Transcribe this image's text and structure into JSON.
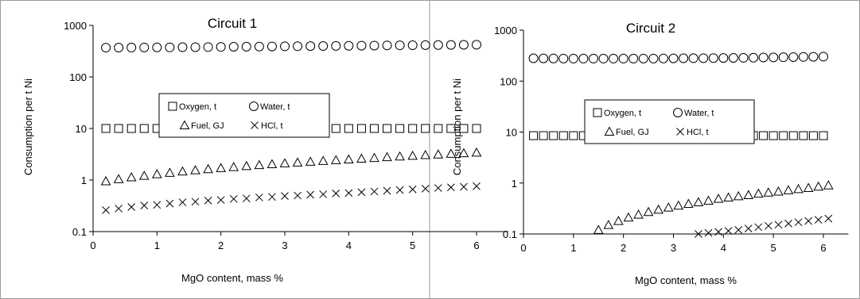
{
  "chart_data": [
    {
      "type": "scatter",
      "title": "Circuit 1",
      "xlabel": "MgO content, mass %",
      "ylabel": "Consumption per t Ni",
      "xlim": [
        0,
        6.5
      ],
      "ylim": [
        0.1,
        1000
      ],
      "yscale": "log",
      "x_ticks": [
        "0",
        "1",
        "2",
        "3",
        "4",
        "5",
        "6"
      ],
      "y_ticks": [
        "0.1",
        "1",
        "10",
        "100",
        "1000"
      ],
      "grid": false,
      "legend_position": "center",
      "series": [
        {
          "name": "Oxygen, t",
          "marker": "square",
          "x": [
            0.2,
            0.4,
            0.6,
            0.8,
            1.0,
            1.2,
            1.4,
            1.6,
            1.8,
            2.0,
            2.2,
            2.4,
            2.6,
            2.8,
            3.0,
            3.2,
            3.4,
            3.6,
            3.8,
            4.0,
            4.2,
            4.4,
            4.6,
            4.8,
            5.0,
            5.2,
            5.4,
            5.6,
            5.8,
            6.0
          ],
          "y": [
            10,
            10,
            10,
            10,
            10,
            10,
            10,
            10,
            10,
            10,
            10,
            10,
            10,
            10,
            10,
            10,
            10,
            10,
            10,
            10,
            10,
            10,
            10,
            10,
            10,
            10,
            10,
            10,
            10,
            10
          ]
        },
        {
          "name": "Water, t",
          "marker": "circle",
          "x": [
            0.2,
            0.4,
            0.6,
            0.8,
            1.0,
            1.2,
            1.4,
            1.6,
            1.8,
            2.0,
            2.2,
            2.4,
            2.6,
            2.8,
            3.0,
            3.2,
            3.4,
            3.6,
            3.8,
            4.0,
            4.2,
            4.4,
            4.6,
            4.8,
            5.0,
            5.2,
            5.4,
            5.6,
            5.8,
            6.0
          ],
          "y": [
            370,
            371,
            372,
            373,
            374,
            375,
            377,
            378,
            380,
            382,
            384,
            386,
            388,
            390,
            392,
            394,
            396,
            398,
            400,
            402,
            404,
            406,
            408,
            410,
            412,
            414,
            416,
            418,
            420,
            422
          ]
        },
        {
          "name": "Fuel, GJ",
          "marker": "triangle",
          "x": [
            0.2,
            0.4,
            0.6,
            0.8,
            1.0,
            1.2,
            1.4,
            1.6,
            1.8,
            2.0,
            2.2,
            2.4,
            2.6,
            2.8,
            3.0,
            3.2,
            3.4,
            3.6,
            3.8,
            4.0,
            4.2,
            4.4,
            4.6,
            4.8,
            5.0,
            5.2,
            5.4,
            5.6,
            5.8,
            6.0
          ],
          "y": [
            0.95,
            1.04,
            1.13,
            1.21,
            1.3,
            1.38,
            1.47,
            1.55,
            1.63,
            1.71,
            1.79,
            1.87,
            1.95,
            2.03,
            2.11,
            2.19,
            2.27,
            2.35,
            2.43,
            2.51,
            2.6,
            2.69,
            2.78,
            2.87,
            2.96,
            3.05,
            3.14,
            3.23,
            3.32,
            3.41
          ]
        },
        {
          "name": "HCl, t",
          "marker": "x",
          "x": [
            0.2,
            0.4,
            0.6,
            0.8,
            1.0,
            1.2,
            1.4,
            1.6,
            1.8,
            2.0,
            2.2,
            2.4,
            2.6,
            2.8,
            3.0,
            3.2,
            3.4,
            3.6,
            3.8,
            4.0,
            4.2,
            4.4,
            4.6,
            4.8,
            5.0,
            5.2,
            5.4,
            5.6,
            5.8,
            6.0
          ],
          "y": [
            0.26,
            0.28,
            0.3,
            0.32,
            0.33,
            0.35,
            0.37,
            0.38,
            0.4,
            0.41,
            0.43,
            0.44,
            0.46,
            0.47,
            0.49,
            0.5,
            0.52,
            0.53,
            0.55,
            0.56,
            0.58,
            0.6,
            0.62,
            0.64,
            0.66,
            0.68,
            0.7,
            0.72,
            0.74,
            0.76
          ]
        }
      ]
    },
    {
      "type": "scatter",
      "title": "Circuit 2",
      "xlabel": "MgO content, mass %",
      "ylabel": "Consumption per t Ni",
      "xlim": [
        0,
        6.5
      ],
      "ylim": [
        0.1,
        1000
      ],
      "yscale": "log",
      "x_ticks": [
        "0",
        "1",
        "2",
        "3",
        "4",
        "5",
        "6"
      ],
      "y_ticks": [
        "0.1",
        "1",
        "10",
        "100",
        "1000"
      ],
      "grid": false,
      "legend_position": "center",
      "series": [
        {
          "name": "Oxygen, t",
          "marker": "square",
          "x": [
            0.2,
            0.4,
            0.6,
            0.8,
            1.0,
            1.2,
            1.4,
            1.6,
            1.8,
            2.0,
            2.2,
            2.4,
            2.6,
            2.8,
            3.0,
            3.2,
            3.4,
            3.6,
            3.8,
            4.0,
            4.2,
            4.4,
            4.6,
            4.8,
            5.0,
            5.2,
            5.4,
            5.6,
            5.8,
            6.0
          ],
          "y": [
            8.5,
            8.5,
            8.5,
            8.5,
            8.5,
            8.5,
            8.5,
            8.5,
            8.5,
            8.5,
            8.5,
            8.5,
            8.5,
            8.5,
            8.5,
            8.5,
            8.5,
            8.5,
            8.5,
            8.5,
            8.5,
            8.5,
            8.5,
            8.5,
            8.5,
            8.5,
            8.5,
            8.5,
            8.5,
            8.5
          ]
        },
        {
          "name": "Water, t",
          "marker": "circle",
          "x": [
            0.2,
            0.4,
            0.6,
            0.8,
            1.0,
            1.2,
            1.4,
            1.6,
            1.8,
            2.0,
            2.2,
            2.4,
            2.6,
            2.8,
            3.0,
            3.2,
            3.4,
            3.6,
            3.8,
            4.0,
            4.2,
            4.4,
            4.6,
            4.8,
            5.0,
            5.2,
            5.4,
            5.6,
            5.8,
            6.0
          ],
          "y": [
            280,
            279,
            278,
            277,
            276,
            276,
            276,
            276,
            276,
            276,
            276,
            277,
            277,
            278,
            279,
            280,
            281,
            282,
            283,
            284,
            285,
            286,
            288,
            290,
            292,
            294,
            296,
            298,
            300,
            302
          ]
        },
        {
          "name": "Fuel, GJ",
          "marker": "triangle",
          "x": [
            1.5,
            1.7,
            1.9,
            2.1,
            2.3,
            2.5,
            2.7,
            2.9,
            3.1,
            3.3,
            3.5,
            3.7,
            3.9,
            4.1,
            4.3,
            4.5,
            4.7,
            4.9,
            5.1,
            5.3,
            5.5,
            5.7,
            5.9,
            6.1
          ],
          "y": [
            0.12,
            0.15,
            0.18,
            0.21,
            0.24,
            0.27,
            0.3,
            0.33,
            0.36,
            0.39,
            0.42,
            0.45,
            0.49,
            0.52,
            0.55,
            0.58,
            0.62,
            0.65,
            0.68,
            0.72,
            0.76,
            0.8,
            0.85,
            0.9
          ]
        },
        {
          "name": "HCl, t",
          "marker": "x",
          "x": [
            3.5,
            3.7,
            3.9,
            4.1,
            4.3,
            4.5,
            4.7,
            4.9,
            5.1,
            5.3,
            5.5,
            5.7,
            5.9,
            6.1
          ],
          "y": [
            0.1,
            0.105,
            0.11,
            0.115,
            0.12,
            0.128,
            0.136,
            0.144,
            0.152,
            0.16,
            0.17,
            0.18,
            0.19,
            0.2
          ]
        }
      ]
    }
  ]
}
